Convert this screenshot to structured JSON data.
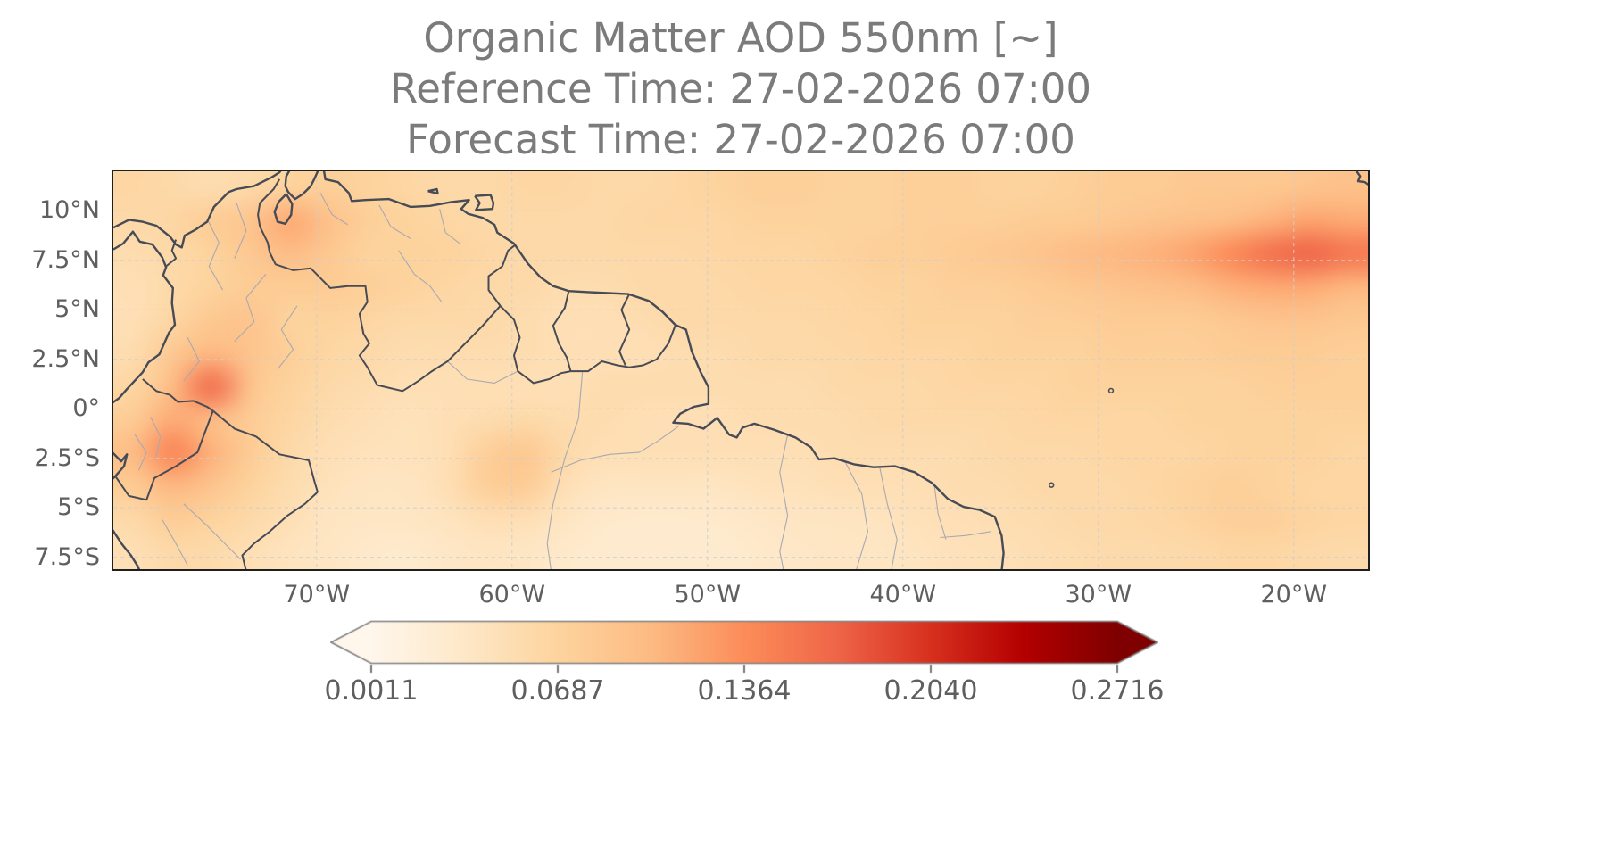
{
  "title": {
    "line1": "Organic Matter AOD 550nm [~]",
    "line2": "Reference Time: 27-02-2026 07:00",
    "line3": "Forecast Time: 27-02-2026 07:00"
  },
  "colors": {
    "title_text": "#7b7b7b",
    "tick_text": "#5f5f5f",
    "axes_spine": "#1f1f1f",
    "coast_border": "#474b55",
    "state_border": "#a9a9b0",
    "grid_line": "#cfcfcf",
    "colorbar_outline": "#808080"
  },
  "chart_data": {
    "type": "heatmap",
    "variable": "Organic Matter AOD 550nm",
    "units": "~",
    "reference_time": "27-02-2026 07:00",
    "forecast_time": "27-02-2026 07:00",
    "projection": "plate-carree (lon/lat map of northern South America and tropical Atlantic)",
    "lon_range": [
      -80.4,
      -16.2
    ],
    "lat_range": [
      -8.1,
      12.0
    ],
    "grid_on": true,
    "grid_style": "dashed",
    "x_axis": {
      "ticks": [
        {
          "label": "70°W",
          "lon": -70
        },
        {
          "label": "60°W",
          "lon": -60
        },
        {
          "label": "50°W",
          "lon": -50
        },
        {
          "label": "40°W",
          "lon": -40
        },
        {
          "label": "30°W",
          "lon": -30
        },
        {
          "label": "20°W",
          "lon": -20
        }
      ]
    },
    "y_axis": {
      "ticks": [
        {
          "label": "10°N",
          "lat": 10
        },
        {
          "label": "7.5°N",
          "lat": 7.5
        },
        {
          "label": "5°N",
          "lat": 5
        },
        {
          "label": "2.5°N",
          "lat": 2.5
        },
        {
          "label": "0°",
          "lat": 0
        },
        {
          "label": "2.5°S",
          "lat": -2.5
        },
        {
          "label": "5°S",
          "lat": -5
        },
        {
          "label": "7.5°S",
          "lat": -7.5
        }
      ]
    },
    "colorbar": {
      "orientation": "horizontal",
      "vmin": 0.0011,
      "vmax": 0.2716,
      "ticks": [
        0.0011,
        0.0687,
        0.1364,
        0.204,
        0.2716
      ],
      "tick_labels": [
        "0.0011",
        "0.0687",
        "0.1364",
        "0.2040",
        "0.2716"
      ],
      "cmap": "OrRd",
      "cmap_stops": [
        "#fff7ec",
        "#fee8c8",
        "#fdd49e",
        "#fdbb84",
        "#fc8d59",
        "#ef6548",
        "#d7301f",
        "#b30000",
        "#7f0000"
      ],
      "extend": "both"
    },
    "grid": {
      "comment": "AOD values on a coarse lon/lat grid estimated from the rendered field; rows run north(12.0N) to south(-8.1S), columns west(-80.4W) to east(-16.2W)",
      "n_lon": 32,
      "n_lat": 12,
      "values": [
        [
          0.065,
          0.06,
          0.055,
          0.06,
          0.07,
          0.075,
          0.07,
          0.065,
          0.06,
          0.06,
          0.065,
          0.065,
          0.06,
          0.06,
          0.065,
          0.07,
          0.075,
          0.075,
          0.07,
          0.07,
          0.075,
          0.075,
          0.07,
          0.07,
          0.075,
          0.08,
          0.08,
          0.085,
          0.085,
          0.085,
          0.09,
          0.095
        ],
        [
          0.06,
          0.065,
          0.08,
          0.09,
          0.115,
          0.095,
          0.075,
          0.07,
          0.065,
          0.06,
          0.06,
          0.06,
          0.06,
          0.065,
          0.065,
          0.065,
          0.07,
          0.07,
          0.07,
          0.07,
          0.075,
          0.075,
          0.075,
          0.08,
          0.08,
          0.085,
          0.09,
          0.095,
          0.1,
          0.11,
          0.12,
          0.115
        ],
        [
          0.055,
          0.06,
          0.07,
          0.085,
          0.1,
          0.085,
          0.07,
          0.07,
          0.07,
          0.065,
          0.06,
          0.06,
          0.06,
          0.06,
          0.06,
          0.065,
          0.065,
          0.065,
          0.07,
          0.075,
          0.075,
          0.08,
          0.085,
          0.09,
          0.1,
          0.105,
          0.11,
          0.12,
          0.14,
          0.16,
          0.17,
          0.155
        ],
        [
          0.05,
          0.06,
          0.07,
          0.08,
          0.08,
          0.08,
          0.075,
          0.07,
          0.065,
          0.06,
          0.06,
          0.055,
          0.055,
          0.06,
          0.06,
          0.06,
          0.065,
          0.065,
          0.065,
          0.07,
          0.07,
          0.075,
          0.075,
          0.08,
          0.085,
          0.09,
          0.095,
          0.1,
          0.11,
          0.115,
          0.115,
          0.105
        ],
        [
          0.05,
          0.065,
          0.085,
          0.09,
          0.07,
          0.07,
          0.065,
          0.06,
          0.06,
          0.06,
          0.055,
          0.05,
          0.05,
          0.055,
          0.06,
          0.06,
          0.06,
          0.06,
          0.065,
          0.065,
          0.07,
          0.07,
          0.07,
          0.075,
          0.075,
          0.08,
          0.08,
          0.08,
          0.085,
          0.09,
          0.09,
          0.085
        ],
        [
          0.055,
          0.085,
          0.105,
          0.09,
          0.075,
          0.065,
          0.06,
          0.055,
          0.055,
          0.055,
          0.055,
          0.05,
          0.05,
          0.05,
          0.055,
          0.055,
          0.06,
          0.06,
          0.06,
          0.065,
          0.065,
          0.065,
          0.07,
          0.07,
          0.07,
          0.075,
          0.075,
          0.075,
          0.08,
          0.08,
          0.08,
          0.075
        ],
        [
          0.065,
          0.1,
          0.165,
          0.09,
          0.07,
          0.06,
          0.055,
          0.05,
          0.05,
          0.05,
          0.05,
          0.05,
          0.055,
          0.055,
          0.055,
          0.055,
          0.055,
          0.055,
          0.06,
          0.06,
          0.06,
          0.065,
          0.065,
          0.065,
          0.07,
          0.07,
          0.07,
          0.07,
          0.07,
          0.075,
          0.075,
          0.075
        ],
        [
          0.08,
          0.115,
          0.1,
          0.08,
          0.065,
          0.055,
          0.05,
          0.045,
          0.05,
          0.055,
          0.06,
          0.055,
          0.055,
          0.05,
          0.05,
          0.05,
          0.055,
          0.055,
          0.055,
          0.06,
          0.06,
          0.06,
          0.06,
          0.065,
          0.065,
          0.065,
          0.065,
          0.07,
          0.07,
          0.07,
          0.07,
          0.07
        ],
        [
          0.1,
          0.145,
          0.11,
          0.08,
          0.06,
          0.05,
          0.045,
          0.045,
          0.05,
          0.075,
          0.085,
          0.06,
          0.05,
          0.05,
          0.05,
          0.05,
          0.05,
          0.05,
          0.055,
          0.055,
          0.055,
          0.055,
          0.06,
          0.06,
          0.06,
          0.065,
          0.065,
          0.065,
          0.07,
          0.07,
          0.07,
          0.065
        ],
        [
          0.08,
          0.105,
          0.09,
          0.07,
          0.055,
          0.045,
          0.04,
          0.04,
          0.05,
          0.075,
          0.08,
          0.05,
          0.04,
          0.04,
          0.04,
          0.04,
          0.045,
          0.045,
          0.05,
          0.05,
          0.05,
          0.055,
          0.055,
          0.06,
          0.06,
          0.06,
          0.065,
          0.07,
          0.075,
          0.07,
          0.065,
          0.065
        ],
        [
          0.06,
          0.08,
          0.07,
          0.06,
          0.05,
          0.04,
          0.038,
          0.038,
          0.042,
          0.05,
          0.05,
          0.04,
          0.032,
          0.03,
          0.03,
          0.032,
          0.036,
          0.04,
          0.04,
          0.042,
          0.046,
          0.05,
          0.052,
          0.056,
          0.06,
          0.06,
          0.062,
          0.068,
          0.075,
          0.075,
          0.068,
          0.065
        ],
        [
          0.05,
          0.06,
          0.058,
          0.05,
          0.042,
          0.038,
          0.032,
          0.03,
          0.036,
          0.04,
          0.038,
          0.032,
          0.028,
          0.028,
          0.028,
          0.028,
          0.032,
          0.036,
          0.038,
          0.038,
          0.042,
          0.046,
          0.048,
          0.052,
          0.056,
          0.058,
          0.058,
          0.06,
          0.065,
          0.065,
          0.06,
          0.058
        ]
      ]
    }
  }
}
